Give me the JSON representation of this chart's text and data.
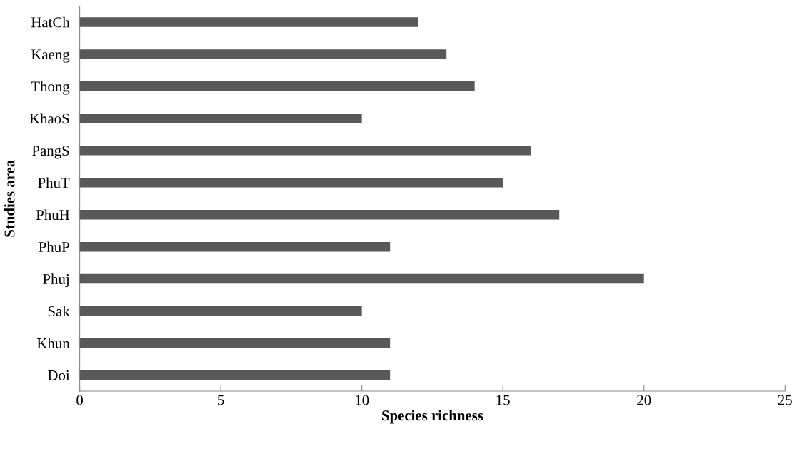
{
  "chart_data": {
    "type": "bar",
    "orientation": "horizontal",
    "xlabel": "Species richness",
    "ylabel": "Studies area",
    "categories": [
      "HatCh",
      "Kaeng",
      "Thong",
      "KhaoS",
      "PangS",
      "PhuT",
      "PhuH",
      "PhuP",
      "Phuj",
      "Sak",
      "Khun",
      "Doi"
    ],
    "values": [
      12,
      13,
      14,
      10,
      16,
      15,
      17,
      11,
      20,
      10,
      11,
      11
    ],
    "color": "#595959",
    "xlim": [
      0,
      25
    ],
    "xticks": [
      0,
      5,
      10,
      15,
      20,
      25
    ],
    "grid": false,
    "legend": false
  }
}
